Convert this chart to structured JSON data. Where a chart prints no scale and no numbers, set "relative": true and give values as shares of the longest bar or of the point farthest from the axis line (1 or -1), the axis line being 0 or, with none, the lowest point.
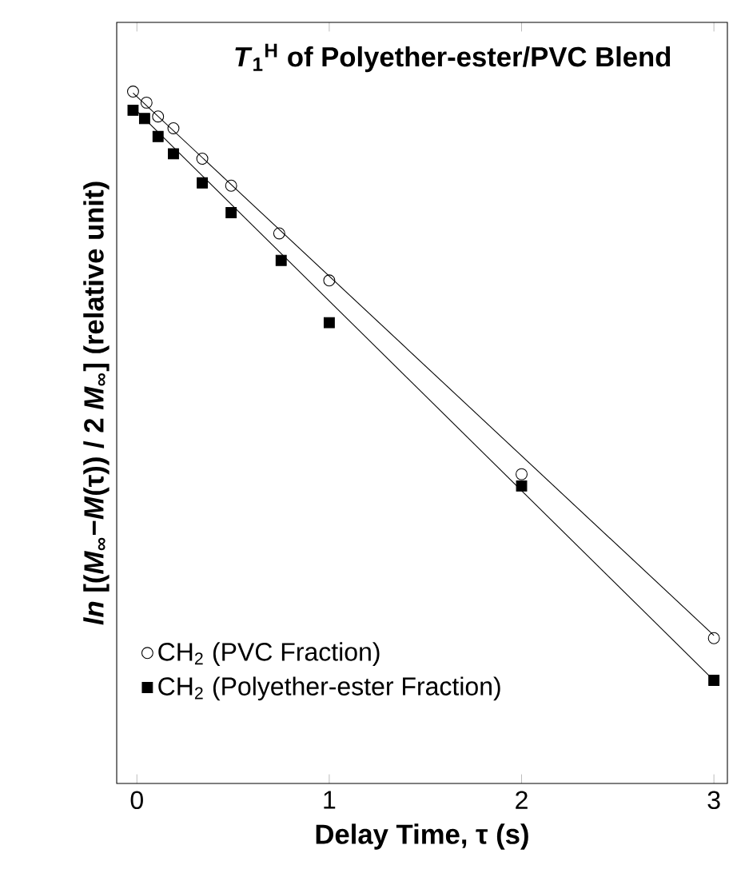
{
  "chart_data": {
    "type": "scatter",
    "title": "*T*$_{1}$$^{H}$ of Polyether-ester/PVC Blend",
    "xlabel": "Delay Time, τ (s)",
    "ylabel": "*ln* [(*M*$_{∞}$−*M*(τ)) / 2 *M*$_{∞}$] (relative unit)",
    "relative": true,
    "xlim": [
      -0.105,
      3.07
    ],
    "xticks": [
      0,
      1,
      2,
      3
    ],
    "legend": "bottom left",
    "grid": false,
    "series": [
      {
        "name": "CH$_{2}$ (PVC Fraction)",
        "color": "#000000",
        "marker": "circle",
        "x": [
          -0.02,
          0.05,
          0.11,
          0.19,
          0.34,
          0.49,
          0.74,
          1.0,
          2.0,
          3.0
        ],
        "values": [
          1.0,
          0.984,
          0.964,
          0.947,
          0.903,
          0.864,
          0.795,
          0.727,
          0.447,
          0.21
        ]
      },
      {
        "name": "CH$_{2}$ (Polyether-ester Fraction)",
        "color": "#000000",
        "marker": "square",
        "x": [
          -0.02,
          0.04,
          0.11,
          0.19,
          0.34,
          0.49,
          0.75,
          1.0,
          2.0,
          3.0
        ],
        "values": [
          0.973,
          0.961,
          0.935,
          0.91,
          0.868,
          0.825,
          0.756,
          0.666,
          0.43,
          0.149
        ]
      },
      {
        "type": "line",
        "color": "#000000",
        "marker": "none",
        "x": [
          -0.02,
          3.0
        ],
        "values": [
          0.998,
          0.214
        ]
      },
      {
        "type": "line",
        "color": "#000000",
        "marker": "none",
        "x": [
          -0.02,
          3.0
        ],
        "values": [
          0.977,
          0.149
        ]
      }
    ]
  }
}
